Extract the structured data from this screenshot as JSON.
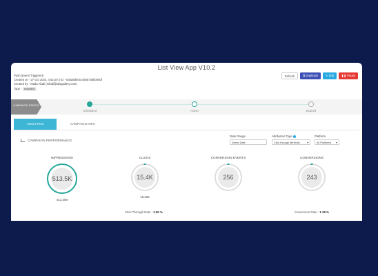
{
  "app": {
    "title": "List View App V10.2"
  },
  "meta": {
    "type_line": "Push (Event Triggered)",
    "created_on": "Created on - 27 Oct 2022, 4:52 pm | ID - 635a8d0c5c4065736b000df",
    "created_by": "Created by - Mada Afadi (mfadi@abagallery.com)",
    "tags_label": "Tags -",
    "tag": "activation"
  },
  "toolbar": {
    "refresh_label": "Refresh",
    "duplicate_label": "Duplicate",
    "edit_label": "Edit",
    "pause_label": "Pause"
  },
  "status": {
    "label": "CAMPAIGN STATUS",
    "steps": [
      "Scheduled",
      "Active",
      "Expired"
    ],
    "expired_marker": "!"
  },
  "tabs": [
    "ANALYTICS",
    "CAMPAIGN INFO"
  ],
  "performance": {
    "title": "CAMPAIGN PERFORMANCE"
  },
  "filters": {
    "date_range": {
      "label": "Date Range",
      "value": "Select Date"
    },
    "attribution": {
      "label": "Attribution Type",
      "value": "Click through attributio"
    },
    "platform": {
      "label": "Platform",
      "value": "All Platforms"
    }
  },
  "metrics": [
    {
      "label": "IMPRESSIONS",
      "value": "513.5K",
      "sub": "513,458"
    },
    {
      "label": "CLICKS",
      "value": "15.4K",
      "sub": "15,366"
    },
    {
      "label": "CONVERSION EVENTS",
      "value": "256",
      "sub": ""
    },
    {
      "label": "CONVERSIONS",
      "value": "243",
      "sub": ""
    }
  ],
  "rates": {
    "ctr_label": "Click Through Rate :",
    "ctr_value": "2.99 %",
    "conv_label": "Conversion Rate :",
    "conv_value": "1.38 %"
  },
  "colors": {
    "page_bg": "#0d1b4c",
    "accent_teal": "#26a69a",
    "tab_active": "#3db6d6",
    "duplicate": "#3f51b5",
    "edit": "#29a9e0",
    "pause": "#e53935"
  }
}
